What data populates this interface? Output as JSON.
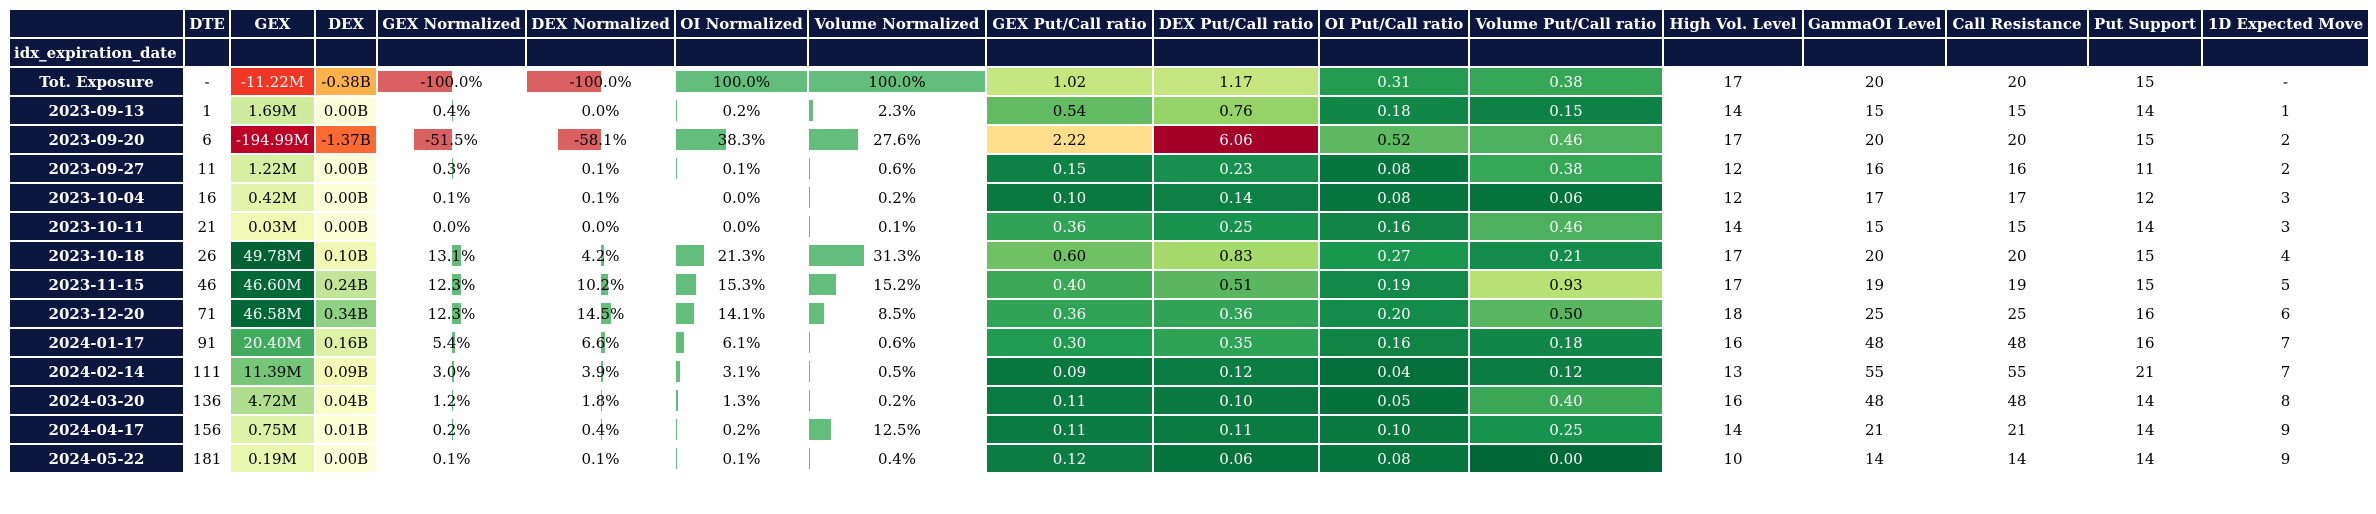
{
  "index_label": "idx_expiration_date",
  "columns": [
    "DTE",
    "GEX",
    "DEX",
    "GEX Normalized",
    "DEX Normalized",
    "OI Normalized",
    "Volume Normalized",
    "GEX Put/Call ratio",
    "DEX Put/Call ratio",
    "OI Put/Call ratio",
    "Volume Put/Call ratio",
    "High Vol. Level",
    "GammaOI Level",
    "Call Resistance",
    "Put Support",
    "1D Expected Move"
  ],
  "colors": {
    "header_bg": "#0c1740",
    "bar_positive": "#63be7b",
    "bar_negative": "#db6062"
  },
  "chart_data": {
    "type": "table",
    "columns": [
      "DTE",
      "GEX",
      "DEX",
      "GEX Normalized",
      "DEX Normalized",
      "OI Normalized",
      "Volume Normalized",
      "GEX Put/Call ratio",
      "DEX Put/Call ratio",
      "OI Put/Call ratio",
      "Volume Put/Call ratio",
      "High Vol. Level",
      "GammaOI Level",
      "Call Resistance",
      "Put Support",
      "1D Expected Move"
    ],
    "rows": [
      {
        "date": "Tot. Exposure",
        "dte": "-",
        "gex": "-11.22M",
        "dex": "-0.38B",
        "gex_norm": "-100.0%",
        "dex_norm": "-100.0%",
        "oi_norm": "100.0%",
        "vol_norm": "100.0%",
        "gex_pc": "1.02",
        "dex_pc": "1.17",
        "oi_pc": "0.31",
        "vol_pc": "0.38",
        "hvl": "17",
        "goi": "20",
        "call_res": "20",
        "put_sup": "15",
        "exp_move": "-"
      },
      {
        "date": "2023-09-13",
        "dte": "1",
        "gex": "1.69M",
        "dex": "0.00B",
        "gex_norm": "0.4%",
        "dex_norm": "0.0%",
        "oi_norm": "0.2%",
        "vol_norm": "2.3%",
        "gex_pc": "0.54",
        "dex_pc": "0.76",
        "oi_pc": "0.18",
        "vol_pc": "0.15",
        "hvl": "14",
        "goi": "15",
        "call_res": "15",
        "put_sup": "14",
        "exp_move": "1"
      },
      {
        "date": "2023-09-20",
        "dte": "6",
        "gex": "-194.99M",
        "dex": "-1.37B",
        "gex_norm": "-51.5%",
        "dex_norm": "-58.1%",
        "oi_norm": "38.3%",
        "vol_norm": "27.6%",
        "gex_pc": "2.22",
        "dex_pc": "6.06",
        "oi_pc": "0.52",
        "vol_pc": "0.46",
        "hvl": "17",
        "goi": "20",
        "call_res": "20",
        "put_sup": "15",
        "exp_move": "2"
      },
      {
        "date": "2023-09-27",
        "dte": "11",
        "gex": "1.22M",
        "dex": "0.00B",
        "gex_norm": "0.3%",
        "dex_norm": "0.1%",
        "oi_norm": "0.1%",
        "vol_norm": "0.6%",
        "gex_pc": "0.15",
        "dex_pc": "0.23",
        "oi_pc": "0.08",
        "vol_pc": "0.38",
        "hvl": "12",
        "goi": "16",
        "call_res": "16",
        "put_sup": "11",
        "exp_move": "2"
      },
      {
        "date": "2023-10-04",
        "dte": "16",
        "gex": "0.42M",
        "dex": "0.00B",
        "gex_norm": "0.1%",
        "dex_norm": "0.1%",
        "oi_norm": "0.0%",
        "vol_norm": "0.2%",
        "gex_pc": "0.10",
        "dex_pc": "0.14",
        "oi_pc": "0.08",
        "vol_pc": "0.06",
        "hvl": "12",
        "goi": "17",
        "call_res": "17",
        "put_sup": "12",
        "exp_move": "3"
      },
      {
        "date": "2023-10-11",
        "dte": "21",
        "gex": "0.03M",
        "dex": "0.00B",
        "gex_norm": "0.0%",
        "dex_norm": "0.0%",
        "oi_norm": "0.0%",
        "vol_norm": "0.1%",
        "gex_pc": "0.36",
        "dex_pc": "0.25",
        "oi_pc": "0.16",
        "vol_pc": "0.46",
        "hvl": "14",
        "goi": "15",
        "call_res": "15",
        "put_sup": "14",
        "exp_move": "3"
      },
      {
        "date": "2023-10-18",
        "dte": "26",
        "gex": "49.78M",
        "dex": "0.10B",
        "gex_norm": "13.1%",
        "dex_norm": "4.2%",
        "oi_norm": "21.3%",
        "vol_norm": "31.3%",
        "gex_pc": "0.60",
        "dex_pc": "0.83",
        "oi_pc": "0.27",
        "vol_pc": "0.21",
        "hvl": "17",
        "goi": "20",
        "call_res": "20",
        "put_sup": "15",
        "exp_move": "4"
      },
      {
        "date": "2023-11-15",
        "dte": "46",
        "gex": "46.60M",
        "dex": "0.24B",
        "gex_norm": "12.3%",
        "dex_norm": "10.2%",
        "oi_norm": "15.3%",
        "vol_norm": "15.2%",
        "gex_pc": "0.40",
        "dex_pc": "0.51",
        "oi_pc": "0.19",
        "vol_pc": "0.93",
        "hvl": "17",
        "goi": "19",
        "call_res": "19",
        "put_sup": "15",
        "exp_move": "5"
      },
      {
        "date": "2023-12-20",
        "dte": "71",
        "gex": "46.58M",
        "dex": "0.34B",
        "gex_norm": "12.3%",
        "dex_norm": "14.5%",
        "oi_norm": "14.1%",
        "vol_norm": "8.5%",
        "gex_pc": "0.36",
        "dex_pc": "0.36",
        "oi_pc": "0.20",
        "vol_pc": "0.50",
        "hvl": "18",
        "goi": "25",
        "call_res": "25",
        "put_sup": "16",
        "exp_move": "6"
      },
      {
        "date": "2024-01-17",
        "dte": "91",
        "gex": "20.40M",
        "dex": "0.16B",
        "gex_norm": "5.4%",
        "dex_norm": "6.6%",
        "oi_norm": "6.1%",
        "vol_norm": "0.6%",
        "gex_pc": "0.30",
        "dex_pc": "0.35",
        "oi_pc": "0.16",
        "vol_pc": "0.18",
        "hvl": "16",
        "goi": "48",
        "call_res": "48",
        "put_sup": "16",
        "exp_move": "7"
      },
      {
        "date": "2024-02-14",
        "dte": "111",
        "gex": "11.39M",
        "dex": "0.09B",
        "gex_norm": "3.0%",
        "dex_norm": "3.9%",
        "oi_norm": "3.1%",
        "vol_norm": "0.5%",
        "gex_pc": "0.09",
        "dex_pc": "0.12",
        "oi_pc": "0.04",
        "vol_pc": "0.12",
        "hvl": "13",
        "goi": "55",
        "call_res": "55",
        "put_sup": "21",
        "exp_move": "7"
      },
      {
        "date": "2024-03-20",
        "dte": "136",
        "gex": "4.72M",
        "dex": "0.04B",
        "gex_norm": "1.2%",
        "dex_norm": "1.8%",
        "oi_norm": "1.3%",
        "vol_norm": "0.2%",
        "gex_pc": "0.11",
        "dex_pc": "0.10",
        "oi_pc": "0.05",
        "vol_pc": "0.40",
        "hvl": "16",
        "goi": "48",
        "call_res": "48",
        "put_sup": "14",
        "exp_move": "8"
      },
      {
        "date": "2024-04-17",
        "dte": "156",
        "gex": "0.75M",
        "dex": "0.01B",
        "gex_norm": "0.2%",
        "dex_norm": "0.4%",
        "oi_norm": "0.2%",
        "vol_norm": "12.5%",
        "gex_pc": "0.11",
        "dex_pc": "0.11",
        "oi_pc": "0.10",
        "vol_pc": "0.25",
        "hvl": "14",
        "goi": "21",
        "call_res": "21",
        "put_sup": "14",
        "exp_move": "9"
      },
      {
        "date": "2024-05-22",
        "dte": "181",
        "gex": "0.19M",
        "dex": "0.00B",
        "gex_norm": "0.1%",
        "dex_norm": "0.1%",
        "oi_norm": "0.1%",
        "vol_norm": "0.4%",
        "gex_pc": "0.12",
        "dex_pc": "0.06",
        "oi_pc": "0.08",
        "vol_pc": "0.00",
        "hvl": "10",
        "goi": "14",
        "call_res": "14",
        "put_sup": "14",
        "exp_move": "9"
      }
    ]
  }
}
